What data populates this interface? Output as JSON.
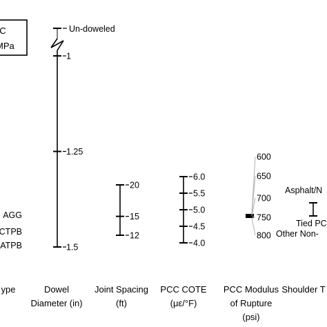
{
  "chart_data": {
    "type": "sensitivity-range",
    "title": "",
    "legend": {
      "lines": [
        "°C",
        "MPa"
      ],
      "placement": "top-left"
    },
    "axes": [
      {
        "id": "base-type",
        "label_lines": [
          "ype"
        ],
        "labels": [
          {
            "text": "AGG",
            "value": 1.25
          },
          {
            "text": "CTPB",
            "value": 1.35
          },
          {
            "text": "ATPB",
            "value": 1.45
          }
        ],
        "range": [
          1.25,
          1.5
        ]
      },
      {
        "id": "dowel-diameter",
        "label_lines": [
          "Dowel",
          "Diameter (in)"
        ],
        "range": [
          1.0,
          1.5
        ],
        "ticks": [
          {
            "text": "1",
            "value": 1.0
          },
          {
            "text": "1.25",
            "value": 1.25
          },
          {
            "text": "1.5",
            "value": 1.5
          }
        ],
        "break_label": "Un-doweled"
      },
      {
        "id": "joint-spacing",
        "label_lines": [
          "Joint Spacing",
          "(ft)"
        ],
        "range": [
          12,
          20
        ],
        "ticks": [
          {
            "text": "20",
            "value": 20
          },
          {
            "text": "15",
            "value": 15
          },
          {
            "text": "12",
            "value": 12
          }
        ]
      },
      {
        "id": "pcc-cote",
        "label_lines": [
          "PCC COTE",
          "(με/°F)"
        ],
        "range": [
          4.0,
          6.0
        ],
        "ticks": [
          {
            "text": "6.0",
            "value": 6.0
          },
          {
            "text": "5.5",
            "value": 5.5
          },
          {
            "text": "5.0",
            "value": 5.0
          },
          {
            "text": "4.5",
            "value": 4.5
          },
          {
            "text": "4.0",
            "value": 4.0
          }
        ]
      },
      {
        "id": "pcc-mor",
        "label_lines": [
          "PCC Modulus",
          "of Rupture",
          "(psi)"
        ],
        "range": [
          600,
          800
        ],
        "ticks": [
          {
            "text": "600",
            "value": 600
          },
          {
            "text": "650",
            "value": 650
          },
          {
            "text": "700",
            "value": 700
          },
          {
            "text": "750",
            "value": 750
          },
          {
            "text": "800",
            "value": 800
          }
        ]
      },
      {
        "id": "shoulder-type",
        "label_lines": [
          "Shoulder T"
        ],
        "labels": [
          {
            "text": "Asphalt/N",
            "value": 1
          },
          {
            "text": "Tied PC",
            "value": 2
          },
          {
            "text": "Other Non-",
            "value": 3
          }
        ]
      }
    ]
  }
}
